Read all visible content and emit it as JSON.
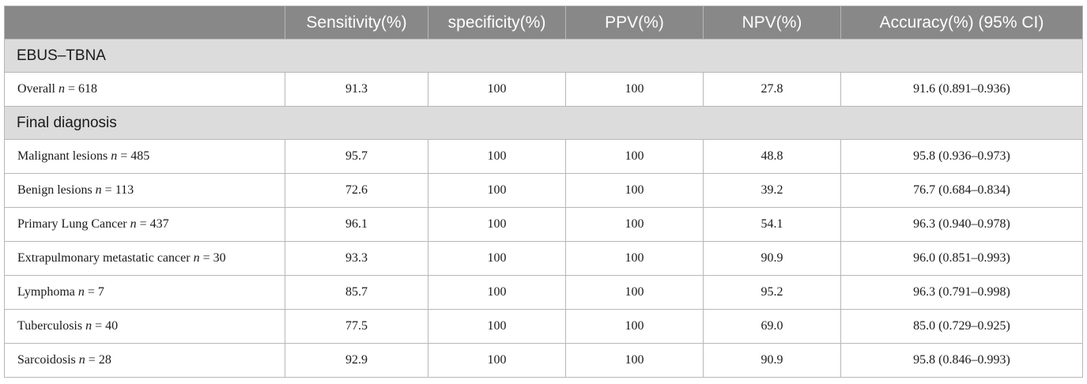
{
  "columns": [
    "",
    "Sensitivity(%)",
    "specificity(%)",
    "PPV(%)",
    "NPV(%)",
    "Accuracy(%) (95% CI)"
  ],
  "sections": [
    {
      "title": "EBUS–TBNA",
      "rows": [
        {
          "label": "Overall",
          "n": "618",
          "sensitivity": "91.3",
          "specificity": "100",
          "ppv": "100",
          "npv": "27.8",
          "accuracy": "91.6 (0.891–0.936)"
        }
      ]
    },
    {
      "title": "Final diagnosis",
      "rows": [
        {
          "label": "Malignant lesions",
          "n": "485",
          "sensitivity": "95.7",
          "specificity": "100",
          "ppv": "100",
          "npv": "48.8",
          "accuracy": "95.8 (0.936–0.973)"
        },
        {
          "label": "Benign lesions",
          "n": "113",
          "sensitivity": "72.6",
          "specificity": "100",
          "ppv": "100",
          "npv": "39.2",
          "accuracy": "76.7 (0.684–0.834)"
        },
        {
          "label": "Primary Lung Cancer",
          "n": "437",
          "sensitivity": "96.1",
          "specificity": "100",
          "ppv": "100",
          "npv": "54.1",
          "accuracy": "96.3 (0.940–0.978)"
        },
        {
          "label": "Extrapulmonary metastatic cancer",
          "n": "30",
          "sensitivity": "93.3",
          "specificity": "100",
          "ppv": "100",
          "npv": "90.9",
          "accuracy": "96.0 (0.851–0.993)"
        },
        {
          "label": "Lymphoma",
          "n": "7",
          "sensitivity": "85.7",
          "specificity": "100",
          "ppv": "100",
          "npv": "95.2",
          "accuracy": "96.3 (0.791–0.998)"
        },
        {
          "label": "Tuberculosis",
          "n": "40",
          "sensitivity": "77.5",
          "specificity": "100",
          "ppv": "100",
          "npv": "69.0",
          "accuracy": "85.0 (0.729–0.925)"
        },
        {
          "label": "Sarcoidosis",
          "n": "28",
          "sensitivity": "92.9",
          "specificity": "100",
          "ppv": "100",
          "npv": "90.9",
          "accuracy": "95.8 (0.846–0.993)"
        }
      ]
    }
  ]
}
